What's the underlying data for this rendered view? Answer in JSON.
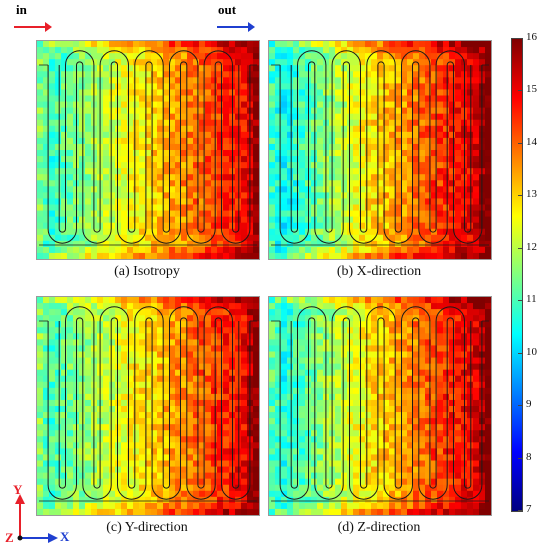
{
  "flow": {
    "inlet_label": "in",
    "outlet_label": "out",
    "inlet_color": "#e8202a",
    "outlet_color": "#1f3fd0"
  },
  "panels": [
    {
      "caption": "(a) Isotropy",
      "bias_left": 0.0,
      "bias_right": 0.0
    },
    {
      "caption": "(b) X-direction",
      "bias_left": -0.6,
      "bias_right": 0.3
    },
    {
      "caption": "(c) Y-direction",
      "bias_left": 0.1,
      "bias_right": 0.05
    },
    {
      "caption": "(d) Z-direction",
      "bias_left": -0.4,
      "bias_right": 0.25
    }
  ],
  "colorbar": {
    "min": 7,
    "max": 16,
    "ticks": [
      "16",
      "15",
      "14",
      "13",
      "12",
      "11",
      "10",
      "9",
      "8",
      "7"
    ],
    "colors": [
      "#000080",
      "#0000ff",
      "#0080ff",
      "#00ffff",
      "#80ff80",
      "#ffff00",
      "#ff8000",
      "#ff0000",
      "#800000"
    ]
  },
  "axes": {
    "y": "Y",
    "x": "X",
    "z": "Z",
    "y_color": "#e8202a",
    "x_color": "#1f3fd0",
    "z_color": "#e8202a"
  }
}
